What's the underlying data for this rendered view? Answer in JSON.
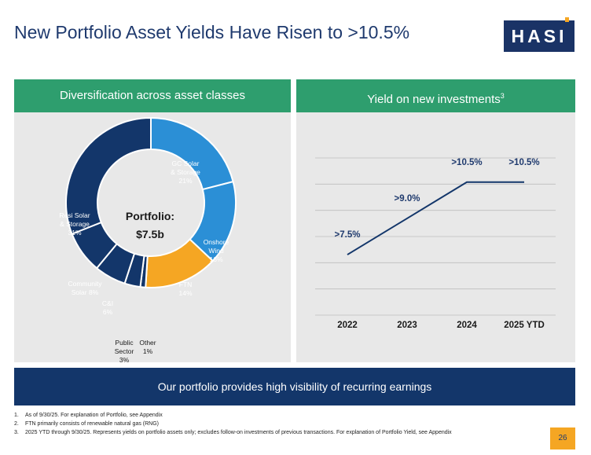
{
  "title": "New Portfolio Asset Yields Have Risen to >10.5%",
  "logo": {
    "text": "HASI"
  },
  "left_panel": {
    "header": "Diversification across asset classes",
    "center_label_1": "Portfolio:",
    "center_label_2": "$7.5b"
  },
  "right_panel": {
    "header": "Yield on new investments",
    "header_sup": "3"
  },
  "footer_band": "Our portfolio provides high visibility of recurring earnings",
  "footnotes": [
    {
      "num": "1.",
      "text": "As of 9/30/25. For explanation of Portfolio, see Appendix"
    },
    {
      "num": "2.",
      "text": "FTN primarily consists of renewable natural gas (RNG)"
    },
    {
      "num": "3.",
      "text": "2025 YTD through 9/30/25. Represents yields on portfolio assets only; excludes follow-on investments of previous transactions. For explanation of Portfolio Yield, see Appendix"
    }
  ],
  "page_number": "26",
  "chart_data": [
    {
      "type": "pie",
      "title": "",
      "donut": true,
      "slices": [
        {
          "label_lines": [
            "GC Solar",
            "& Storage",
            "21%"
          ],
          "value": 21,
          "color": "#2b8fd6"
        },
        {
          "label_lines": [
            "Onshore",
            "Wind",
            "16%"
          ],
          "value": 16,
          "color": "#2b8fd6"
        },
        {
          "label_lines": [
            "FTN",
            "14%"
          ],
          "value": 14,
          "color": "#f5a623"
        },
        {
          "label_lines": [
            "Other",
            "1%"
          ],
          "value": 1,
          "color": "#13366a"
        },
        {
          "label_lines": [
            "Public",
            "Sector",
            "3%"
          ],
          "value": 3,
          "color": "#13366a"
        },
        {
          "label_lines": [
            "C&I",
            "6%"
          ],
          "value": 6,
          "color": "#13366a"
        },
        {
          "label_lines": [
            "Community",
            "Solar 8%"
          ],
          "value": 8,
          "color": "#13366a"
        },
        {
          "label_lines": [
            "Resi Solar",
            "& Storage",
            "31%"
          ],
          "value": 31,
          "color": "#13366a"
        }
      ]
    },
    {
      "type": "line",
      "title": "",
      "categories": [
        "2022",
        "2023",
        "2024",
        "2025 YTD"
      ],
      "values": [
        7.5,
        9.0,
        10.5,
        10.5
      ],
      "data_labels": [
        ">7.5%",
        ">9.0%",
        ">10.5%",
        ">10.5%"
      ],
      "ylim": [
        5.0,
        11.5
      ],
      "grid": true,
      "line_color": "#13366a"
    }
  ]
}
